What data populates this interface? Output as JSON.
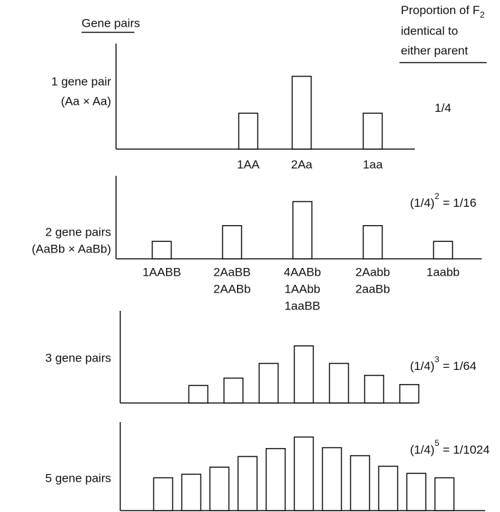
{
  "header": {
    "left": "Gene pairs",
    "right": {
      "text": "Proportion of F",
      "subscript": "2",
      "lines": [
        "identical to",
        "either parent"
      ]
    }
  },
  "chart_data": [
    {
      "type": "bar",
      "label": [
        "1 gene pair",
        "(Aa × Aa)"
      ],
      "proportion": {
        "text": "1/4"
      },
      "categories": [
        [
          "1AA"
        ],
        [
          "2Aa"
        ],
        [
          "1aa"
        ]
      ],
      "values": [
        34,
        69,
        34
      ],
      "ylim": [
        0,
        100
      ]
    },
    {
      "type": "bar",
      "label": [
        "2 gene pairs",
        "(AaBb × AaBb)"
      ],
      "proportion": {
        "base": "(1/4)",
        "exponent": "2",
        "rest": "= 1/16"
      },
      "categories": [
        [
          "1AABB"
        ],
        [
          "2AaBB",
          "2AABb"
        ],
        [
          "4AABb",
          "1AAbb",
          "1aaBB"
        ],
        [
          "2Aabb",
          "2aaBb"
        ],
        [
          "1aabb"
        ]
      ],
      "values": [
        21,
        40,
        69,
        40,
        21
      ],
      "ylim": [
        0,
        100
      ]
    },
    {
      "type": "bar",
      "label": [
        "3 gene pairs"
      ],
      "proportion": {
        "base": "(1/4)",
        "exponent": "3",
        "rest": "= 1/64"
      },
      "categories": [
        null,
        null,
        null,
        null,
        null,
        null,
        null
      ],
      "values": [
        19,
        27,
        43,
        62,
        43,
        30,
        20
      ],
      "ylim": [
        0,
        100
      ]
    },
    {
      "type": "bar",
      "label": [
        "5 gene pairs"
      ],
      "proportion": {
        "base": "(1/4)",
        "exponent": "5",
        "rest": "= 1/1024"
      },
      "categories": [
        null,
        null,
        null,
        null,
        null,
        null,
        null,
        null,
        null,
        null,
        null
      ],
      "values": [
        37,
        41,
        49,
        61,
        70,
        83,
        71,
        62,
        50,
        42,
        37
      ],
      "ylim": [
        0,
        100
      ]
    }
  ]
}
